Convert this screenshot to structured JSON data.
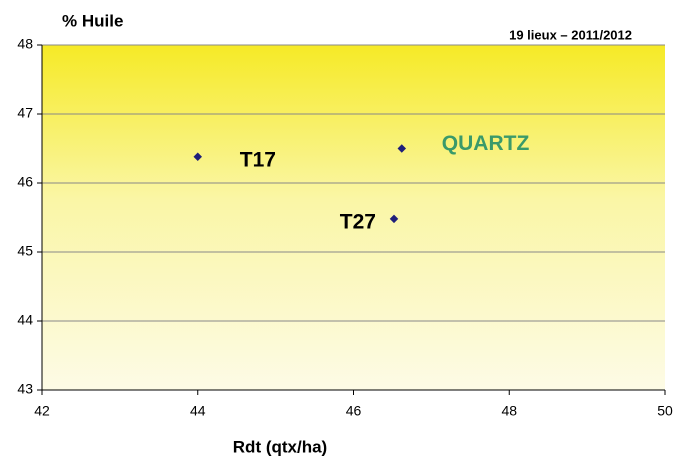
{
  "chart_data": {
    "type": "scatter",
    "ylabel": "% Huile",
    "subtitle": "19 lieux – 2011/2012",
    "xlabel": "Rdt (qtx/ha)",
    "series": [
      {
        "x": [
          44,
          46.62,
          46.52
        ],
        "values": [
          46.38,
          46.5,
          45.48
        ],
        "color": "#1f1f7a"
      }
    ],
    "point_labels": [
      "T17",
      "QUARTZ",
      "T27"
    ],
    "point_label_colors": [
      "#000000",
      "#3a9a6a",
      "#000000"
    ],
    "xlim": [
      42,
      50
    ],
    "xticks": [
      42,
      44,
      46,
      48,
      50
    ],
    "ylim": [
      43,
      48
    ],
    "yticks": [
      43,
      44,
      45,
      46,
      47,
      48
    ],
    "grid": true
  }
}
